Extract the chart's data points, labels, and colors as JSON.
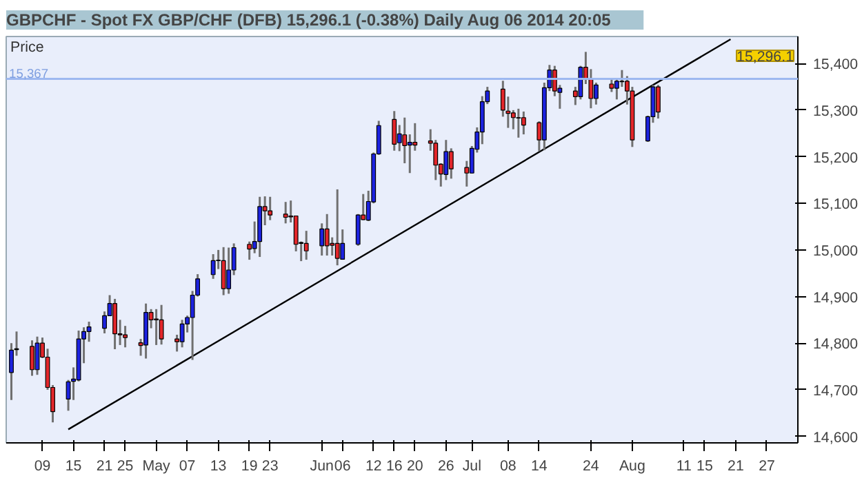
{
  "chart_data": {
    "type": "candlestick",
    "title": "GBPCHF - Spot FX GBP/CHF (DFB)    15,296.1 (-0.38%)    Daily  Aug 06 2014 20:05",
    "ylabel": "Price",
    "x": [
      "2014-04-03",
      "2014-04-04",
      "2014-04-07",
      "2014-04-08",
      "2014-04-09",
      "2014-04-10",
      "2014-04-11",
      "2014-04-14",
      "2014-04-15",
      "2014-04-16",
      "2014-04-17",
      "2014-04-18",
      "2014-04-21",
      "2014-04-22",
      "2014-04-23",
      "2014-04-24",
      "2014-04-25",
      "2014-04-28",
      "2014-04-29",
      "2014-04-30",
      "2014-05-01",
      "2014-05-02",
      "2014-05-05",
      "2014-05-06",
      "2014-05-07",
      "2014-05-08",
      "2014-05-09",
      "2014-05-12",
      "2014-05-13",
      "2014-05-14",
      "2014-05-15",
      "2014-05-16",
      "2014-05-19",
      "2014-05-20",
      "2014-05-21",
      "2014-05-22",
      "2014-05-23",
      "2014-05-26",
      "2014-05-27",
      "2014-05-28",
      "2014-05-29",
      "2014-05-30",
      "2014-06-02",
      "2014-06-03",
      "2014-06-04",
      "2014-06-05",
      "2014-06-06",
      "2014-06-09",
      "2014-06-10",
      "2014-06-11",
      "2014-06-12",
      "2014-06-13",
      "2014-06-16",
      "2014-06-17",
      "2014-06-18",
      "2014-06-19",
      "2014-06-20",
      "2014-06-23",
      "2014-06-24",
      "2014-06-25",
      "2014-06-26",
      "2014-06-27",
      "2014-06-30",
      "2014-07-01",
      "2014-07-02",
      "2014-07-03",
      "2014-07-04",
      "2014-07-07",
      "2014-07-08",
      "2014-07-09",
      "2014-07-10",
      "2014-07-11",
      "2014-07-14",
      "2014-07-15",
      "2014-07-16",
      "2014-07-17",
      "2014-07-18",
      "2014-07-21",
      "2014-07-22",
      "2014-07-23",
      "2014-07-24",
      "2014-07-25",
      "2014-07-28",
      "2014-07-29",
      "2014-07-30",
      "2014-07-31",
      "2014-08-01",
      "2014-08-04",
      "2014-08-05",
      "2014-08-06"
    ],
    "ohlc": [
      [
        14737,
        14800,
        14678,
        14785
      ],
      [
        14786,
        14825,
        14773,
        14788
      ],
      [
        14793,
        14806,
        14730,
        14743
      ],
      [
        14743,
        14814,
        14732,
        14800
      ],
      [
        14800,
        14812,
        14768,
        14770
      ],
      [
        14770,
        14788,
        14700,
        14705
      ],
      [
        14705,
        14710,
        14630,
        14653
      ],
      [
        14680,
        14721,
        14655,
        14717
      ],
      [
        14718,
        14748,
        14678,
        14723
      ],
      [
        14721,
        14827,
        14718,
        14809
      ],
      [
        14809,
        14834,
        14757,
        14825
      ],
      [
        14825,
        14846,
        14803,
        14835
      ],
      [
        14832,
        14868,
        14821,
        14859
      ],
      [
        14859,
        14903,
        14859,
        14885
      ],
      [
        14885,
        14895,
        14787,
        14820
      ],
      [
        14820,
        14850,
        14796,
        14818
      ],
      [
        14818,
        14837,
        14791,
        14812
      ],
      [
        14801,
        14809,
        14773,
        14795
      ],
      [
        14796,
        14885,
        14767,
        14866
      ],
      [
        14866,
        14873,
        14832,
        14850
      ],
      [
        14852,
        14873,
        14796,
        14850
      ],
      [
        14850,
        14882,
        14797,
        14809
      ],
      [
        14809,
        14818,
        14782,
        14803
      ],
      [
        14803,
        14850,
        14791,
        14841
      ],
      [
        14841,
        14859,
        14823,
        14855
      ],
      [
        14855,
        14912,
        14764,
        14903
      ],
      [
        14903,
        14948,
        14900,
        14938
      ],
      [
        14947,
        14991,
        14938,
        14977
      ],
      [
        14977,
        15000,
        14959,
        14978
      ],
      [
        14977,
        15006,
        14903,
        14917
      ],
      [
        14917,
        15005,
        14906,
        14957
      ],
      [
        14957,
        15014,
        14946,
        15005
      ],
      [
        15012,
        15018,
        14979,
        15002
      ],
      [
        15003,
        15061,
        14993,
        15018
      ],
      [
        15018,
        15114,
        14985,
        15093
      ],
      [
        15093,
        15115,
        15053,
        15084
      ],
      [
        15084,
        15114,
        15064,
        15075
      ],
      [
        15077,
        15103,
        15057,
        15070
      ],
      [
        15073,
        15106,
        15059,
        15071
      ],
      [
        15073,
        15073,
        14997,
        15012
      ],
      [
        15016,
        15018,
        14976,
        15014
      ],
      [
        15014,
        15041,
        14979,
        14998
      ],
      [
        15009,
        15057,
        14988,
        15045
      ],
      [
        15045,
        15077,
        14988,
        15009
      ],
      [
        15014,
        15027,
        14988,
        15010
      ],
      [
        15014,
        15130,
        14967,
        14982
      ],
      [
        14980,
        15044,
        14979,
        15014
      ],
      [
        15012,
        15077,
        15009,
        15075
      ],
      [
        15075,
        15120,
        15064,
        15065
      ],
      [
        15064,
        15127,
        15062,
        15104
      ],
      [
        15103,
        15209,
        15100,
        15206
      ],
      [
        15206,
        15277,
        15204,
        15267
      ],
      [
        15280,
        15298,
        15213,
        15227
      ],
      [
        15230,
        15268,
        15212,
        15249
      ],
      [
        15247,
        15284,
        15186,
        15224
      ],
      [
        15225,
        15248,
        15165,
        15231
      ],
      [
        15231,
        15272,
        15213,
        15225
      ],
      [
        15234,
        15259,
        15213,
        15229
      ],
      [
        15229,
        15236,
        15150,
        15182
      ],
      [
        15184,
        15186,
        15136,
        15163
      ],
      [
        15162,
        15236,
        15150,
        15211
      ],
      [
        15211,
        15218,
        15153,
        15174
      ],
      [
        15177,
        15191,
        15136,
        15165
      ],
      [
        15165,
        15223,
        15164,
        15218
      ],
      [
        15216,
        15263,
        15209,
        15253
      ],
      [
        15253,
        15330,
        15227,
        15318
      ],
      [
        15318,
        15350,
        15313,
        15341
      ],
      [
        15345,
        15363,
        15286,
        15300
      ],
      [
        15298,
        15329,
        15262,
        15293
      ],
      [
        15294,
        15300,
        15259,
        15284
      ],
      [
        15284,
        15303,
        15241,
        15283
      ],
      [
        15284,
        15297,
        15248,
        15268
      ],
      [
        15273,
        15276,
        15212,
        15236
      ],
      [
        15236,
        15359,
        15214,
        15348
      ],
      [
        15348,
        15397,
        15341,
        15386
      ],
      [
        15386,
        15395,
        15330,
        15341
      ],
      [
        15338,
        15354,
        15303,
        15347
      ],
      [
        15341,
        15350,
        15311,
        15329
      ],
      [
        15329,
        15395,
        15323,
        15392
      ],
      [
        15392,
        15425,
        15356,
        15368
      ],
      [
        15368,
        15388,
        15304,
        15325
      ],
      [
        15325,
        15359,
        15312,
        15354
      ],
      [
        15356,
        15366,
        15339,
        15347
      ],
      [
        15347,
        15366,
        15323,
        15362
      ],
      [
        15362,
        15386,
        15350,
        15361
      ],
      [
        15362,
        15373,
        15312,
        15341
      ],
      [
        15341,
        15350,
        15221,
        15236
      ],
      [
        15234,
        15288,
        15232,
        15286
      ],
      [
        15286,
        15354,
        15273,
        15350
      ],
      [
        15350,
        15354,
        15282,
        15296.1
      ]
    ],
    "series": [
      {
        "type": "line",
        "x": [
          "2014-04-14",
          "2014-08-20"
        ],
        "values": [
          14615,
          15452
        ],
        "color": "#000000"
      }
    ],
    "xlim": [
      "2014-04-02",
      "2014-09-02"
    ],
    "xticks": [
      {
        "value": "2014-04-09",
        "label": "09"
      },
      {
        "value": "2014-04-15",
        "label": "15"
      },
      {
        "value": "2014-04-21",
        "label": "21"
      },
      {
        "value": "2014-04-25",
        "label": "25"
      },
      {
        "value": "2014-05-01",
        "label": "May"
      },
      {
        "value": "2014-05-07",
        "label": "07"
      },
      {
        "value": "2014-05-13",
        "label": "13"
      },
      {
        "value": "2014-05-19",
        "label": "19"
      },
      {
        "value": "2014-05-23",
        "label": "23"
      },
      {
        "value": "2014-06-02",
        "label": "Jun"
      },
      {
        "value": "2014-06-06",
        "label": "06"
      },
      {
        "value": "2014-06-12",
        "label": "12"
      },
      {
        "value": "2014-06-16",
        "label": "16"
      },
      {
        "value": "2014-06-20",
        "label": "20"
      },
      {
        "value": "2014-06-26",
        "label": "26"
      },
      {
        "value": "2014-07-01",
        "label": "Jul"
      },
      {
        "value": "2014-07-08",
        "label": "08"
      },
      {
        "value": "2014-07-14",
        "label": "14"
      },
      {
        "value": "2014-07-24",
        "label": "24"
      },
      {
        "value": "2014-08-01",
        "label": "Aug"
      },
      {
        "value": "2014-08-11",
        "label": "11"
      },
      {
        "value": "2014-08-15",
        "label": "15"
      },
      {
        "value": "2014-08-21",
        "label": "21"
      },
      {
        "value": "2014-08-27",
        "label": "27"
      }
    ],
    "ylim": [
      14586,
      15458
    ],
    "yticks": [
      {
        "value": 14600,
        "label": "14,600"
      },
      {
        "value": 14700,
        "label": "14,700"
      },
      {
        "value": 14800,
        "label": "14,800"
      },
      {
        "value": 14900,
        "label": "14,900"
      },
      {
        "value": 15000,
        "label": "15,000"
      },
      {
        "value": 15100,
        "label": "15,100"
      },
      {
        "value": 15200,
        "label": "15,200"
      },
      {
        "value": 15300,
        "label": "15,300"
      },
      {
        "value": 15400,
        "label": "15,400"
      }
    ],
    "ref_lines": [
      {
        "axis": "y",
        "value": 15367,
        "label": "15,367",
        "color": "#9db8f0"
      }
    ],
    "annotations": [
      "15,296.1"
    ],
    "grid": false
  }
}
